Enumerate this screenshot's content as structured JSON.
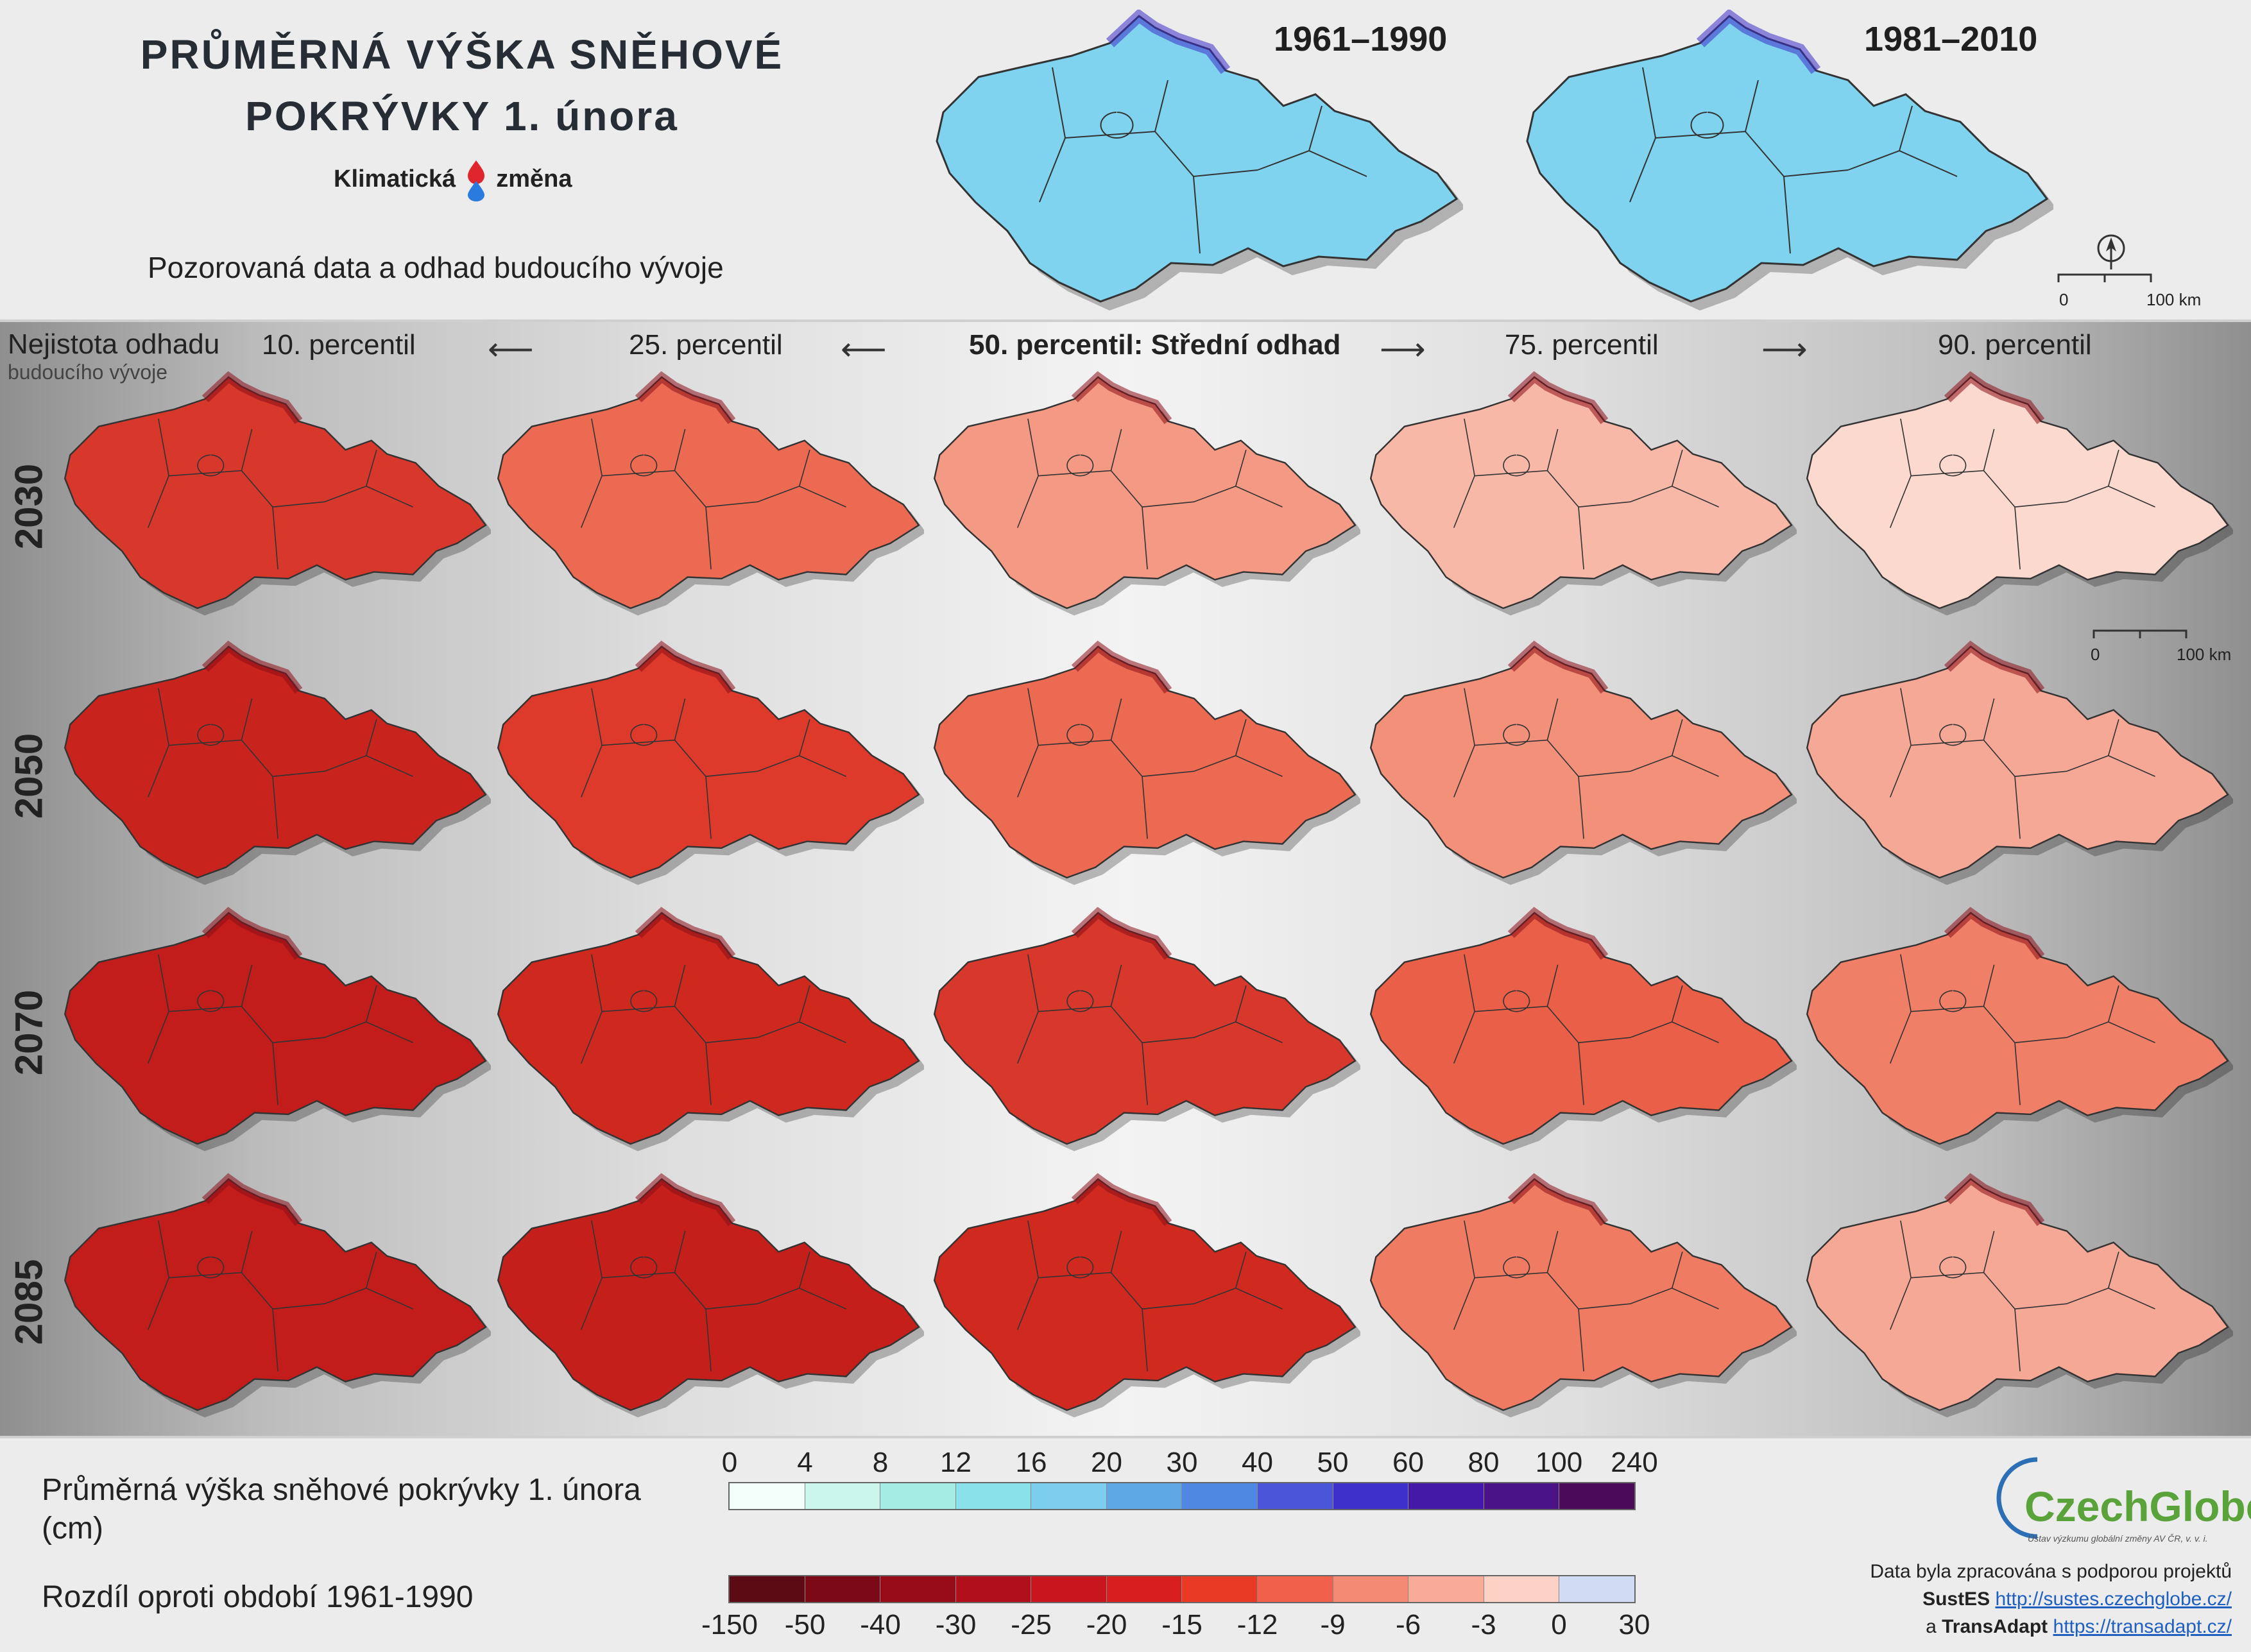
{
  "title_line1": "PRŮMĚRNÁ VÝŠKA SNĚHOVÉ",
  "title_line2": "POKRÝVKY 1. února",
  "brand_word1": "Klimatická",
  "brand_word2": "změna",
  "subtitle": "Pozorovaná data a odhad budoucího vývoje",
  "observed_periods": [
    "1961–1990",
    "1981–2010"
  ],
  "uncertainty_label_1": "Nejistota odhadu",
  "uncertainty_label_2": "budoucího vývoje",
  "columns": [
    "10. percentil",
    "25. percentil",
    "50. percentil: Střední odhad",
    "75. percentil",
    "90. percentil"
  ],
  "rows": [
    "2030",
    "2050",
    "2070",
    "2085"
  ],
  "scale_bar": {
    "zero": "0",
    "end": "100 km"
  },
  "legend_snow": {
    "label": "Průměrná výška sněhové pokrývky 1. února",
    "unit": "(cm)",
    "ticks": [
      "0",
      "4",
      "8",
      "12",
      "16",
      "20",
      "30",
      "40",
      "50",
      "60",
      "80",
      "100",
      "240"
    ],
    "colors": [
      "#f4fffb",
      "#c9f5ea",
      "#a5ede4",
      "#8be1e9",
      "#7ccdee",
      "#5fa8e6",
      "#4f88e2",
      "#4a55d8",
      "#3d2fca",
      "#4519a8",
      "#4b1388",
      "#4b0b5a"
    ]
  },
  "legend_diff": {
    "label": "Rozdíl oproti období 1961-1990",
    "ticks": [
      "-150",
      "-50",
      "-40",
      "-30",
      "-25",
      "-20",
      "-15",
      "-12",
      "-9",
      "-6",
      "-3",
      "0",
      "30"
    ],
    "colors": [
      "#5c0a13",
      "#7c0a16",
      "#980c1a",
      "#b20f1d",
      "#c8151e",
      "#d81e1e",
      "#e83a25",
      "#f0604a",
      "#f58a74",
      "#f9aa98",
      "#fdd2c6",
      "#cfdcf3"
    ]
  },
  "logo": {
    "name": "CzechGlobe",
    "subtitle": "Ústav výzkumu globální změny AV ČR, v. v. i."
  },
  "credits": {
    "line1": "Data byla zpracována s podporou projektů",
    "project1": "SustES",
    "url1": "http://sustes.czechglobe.cz/",
    "joiner": "a",
    "project2": "TransAdapt",
    "url2": "https://transadapt.cz/"
  },
  "map_fills": {
    "observed": [
      "#7fd3ee",
      "#7fd3ee"
    ],
    "future": [
      [
        "#d8372b",
        "#ec6a52",
        "#f49a84",
        "#f8b8a8",
        "#fcd9ce"
      ],
      [
        "#c9231d",
        "#dd3a2b",
        "#ec6a52",
        "#f3907a",
        "#f6a896"
      ],
      [
        "#c21d1b",
        "#cf291f",
        "#d8372b",
        "#ea5f48",
        "#f07f68"
      ],
      [
        "#c21d1b",
        "#c51f1b",
        "#d02a20",
        "#f07b63",
        "#f6a896"
      ]
    ]
  }
}
